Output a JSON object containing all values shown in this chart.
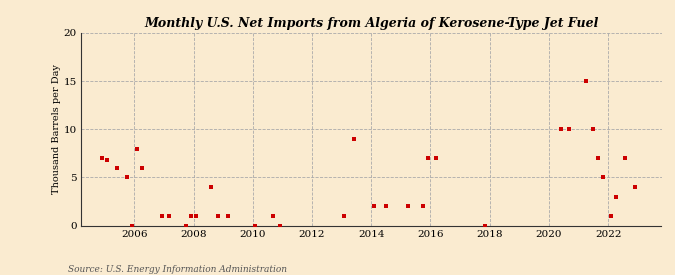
{
  "title": "Monthly U.S. Net Imports from Algeria of Kerosene-Type Jet Fuel",
  "ylabel": "Thousand Barrels per Day",
  "source": "Source: U.S. Energy Information Administration",
  "background_color": "#faebd0",
  "marker_color": "#cc0000",
  "xlim": [
    2004.2,
    2023.8
  ],
  "ylim": [
    0,
    20
  ],
  "yticks": [
    0,
    5,
    10,
    15,
    20
  ],
  "xticks": [
    2006,
    2008,
    2010,
    2012,
    2014,
    2016,
    2018,
    2020,
    2022
  ],
  "data_points": [
    [
      2004.92,
      7.0
    ],
    [
      2005.08,
      6.8
    ],
    [
      2005.42,
      6.0
    ],
    [
      2005.75,
      5.0
    ],
    [
      2005.92,
      0.0
    ],
    [
      2006.08,
      8.0
    ],
    [
      2006.25,
      6.0
    ],
    [
      2006.92,
      1.0
    ],
    [
      2007.17,
      1.0
    ],
    [
      2007.75,
      0.0
    ],
    [
      2007.92,
      1.0
    ],
    [
      2008.08,
      1.0
    ],
    [
      2008.58,
      4.0
    ],
    [
      2008.83,
      1.0
    ],
    [
      2009.17,
      1.0
    ],
    [
      2010.08,
      0.0
    ],
    [
      2010.67,
      1.0
    ],
    [
      2010.92,
      0.0
    ],
    [
      2013.08,
      1.0
    ],
    [
      2013.42,
      9.0
    ],
    [
      2014.08,
      2.0
    ],
    [
      2014.5,
      2.0
    ],
    [
      2015.25,
      2.0
    ],
    [
      2015.75,
      2.0
    ],
    [
      2015.92,
      7.0
    ],
    [
      2016.17,
      7.0
    ],
    [
      2017.83,
      0.0
    ],
    [
      2020.42,
      10.0
    ],
    [
      2020.67,
      10.0
    ],
    [
      2021.25,
      15.0
    ],
    [
      2021.5,
      10.0
    ],
    [
      2021.67,
      7.0
    ],
    [
      2021.83,
      5.0
    ],
    [
      2022.08,
      1.0
    ],
    [
      2022.25,
      3.0
    ],
    [
      2022.58,
      7.0
    ],
    [
      2022.92,
      4.0
    ]
  ]
}
